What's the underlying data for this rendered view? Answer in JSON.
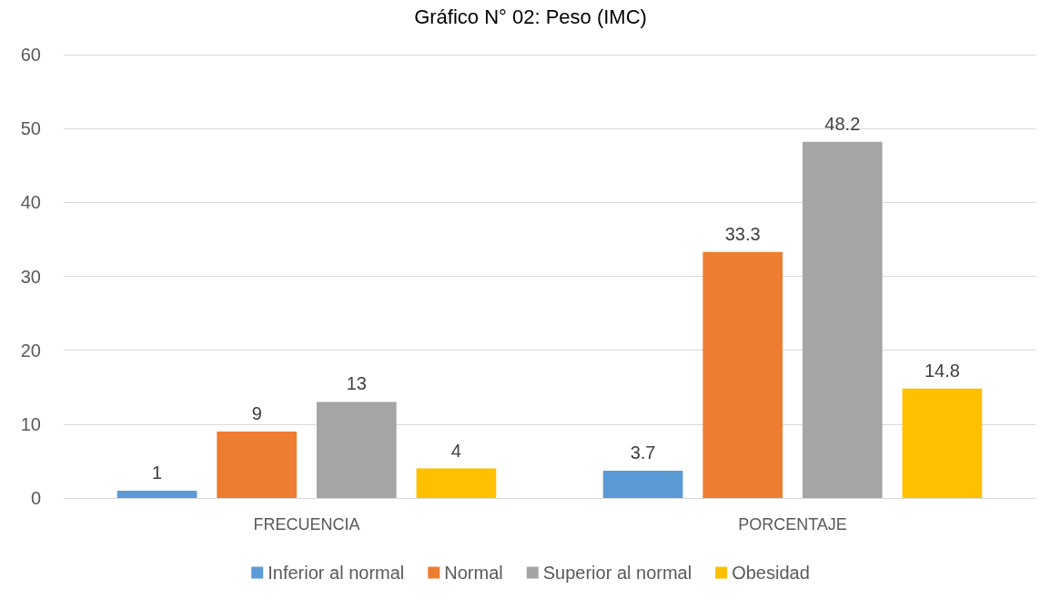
{
  "chart_data": {
    "type": "bar",
    "title": "Gráfico N° 02: Peso (IMC)",
    "categories": [
      "FRECUENCIA",
      "PORCENTAJE"
    ],
    "series": [
      {
        "name": "Inferior al normal",
        "color": "#5b9bd5",
        "values": [
          1,
          3.7
        ]
      },
      {
        "name": "Normal",
        "color": "#ed7d31",
        "values": [
          9,
          33.3
        ]
      },
      {
        "name": "Superior al normal",
        "color": "#a5a5a5",
        "values": [
          13,
          48.2
        ]
      },
      {
        "name": "Obesidad",
        "color": "#ffc000",
        "values": [
          4,
          14.8
        ]
      }
    ],
    "ylim": [
      0,
      60
    ],
    "yticks": [
      0,
      10,
      20,
      30,
      40,
      50,
      60
    ],
    "grid": "y",
    "legend": "bottom",
    "data_labels": true
  }
}
